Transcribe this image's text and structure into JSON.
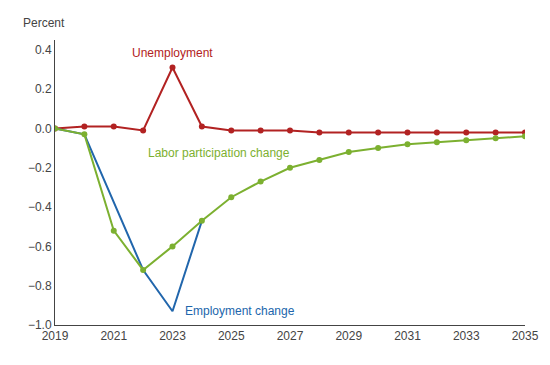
{
  "chart_data": {
    "type": "line",
    "ylabel": "Percent",
    "xlim": [
      2019,
      2035
    ],
    "ylim": [
      -1.0,
      0.45
    ],
    "xticks": [
      2019,
      2021,
      2023,
      2025,
      2027,
      2029,
      2031,
      2033,
      2035
    ],
    "yticks": [
      {
        "value": -1.0,
        "label": "−1.0"
      },
      {
        "value": -0.8,
        "label": "−0.8"
      },
      {
        "value": -0.6,
        "label": "−0.6"
      },
      {
        "value": -0.4,
        "label": "−0.4"
      },
      {
        "value": -0.2,
        "label": "−0.2"
      },
      {
        "value": 0.0,
        "label": "0.0"
      },
      0.2,
      0.4
    ],
    "grid": false,
    "series": [
      {
        "name": "Unemployment",
        "color": "#b22222",
        "marker": "circle",
        "x": [
          2019,
          2020,
          2021,
          2022,
          2023,
          2024,
          2025,
          2026,
          2027,
          2028,
          2029,
          2030,
          2031,
          2032,
          2033,
          2034,
          2035
        ],
        "values": [
          0.0,
          0.01,
          0.01,
          -0.01,
          0.31,
          0.01,
          -0.01,
          -0.01,
          -0.01,
          -0.02,
          -0.02,
          -0.02,
          -0.02,
          -0.02,
          -0.02,
          -0.02,
          -0.02
        ]
      },
      {
        "name": "Employment change",
        "color": "#2166ac",
        "marker": "none",
        "x": [
          2019,
          2020,
          2022,
          2023,
          2024
        ],
        "values": [
          0.0,
          -0.03,
          -0.72,
          -0.93,
          -0.47
        ]
      },
      {
        "name": "Labor participation change",
        "color": "#7cb030",
        "marker": "circle",
        "x": [
          2019,
          2020,
          2021,
          2022,
          2023,
          2024,
          2025,
          2026,
          2027,
          2028,
          2029,
          2030,
          2031,
          2032,
          2033,
          2034,
          2035
        ],
        "values": [
          0.0,
          -0.03,
          -0.52,
          -0.72,
          -0.6,
          -0.47,
          -0.35,
          -0.27,
          -0.2,
          -0.16,
          -0.12,
          -0.1,
          -0.08,
          -0.07,
          -0.06,
          -0.05,
          -0.04
        ]
      }
    ]
  }
}
